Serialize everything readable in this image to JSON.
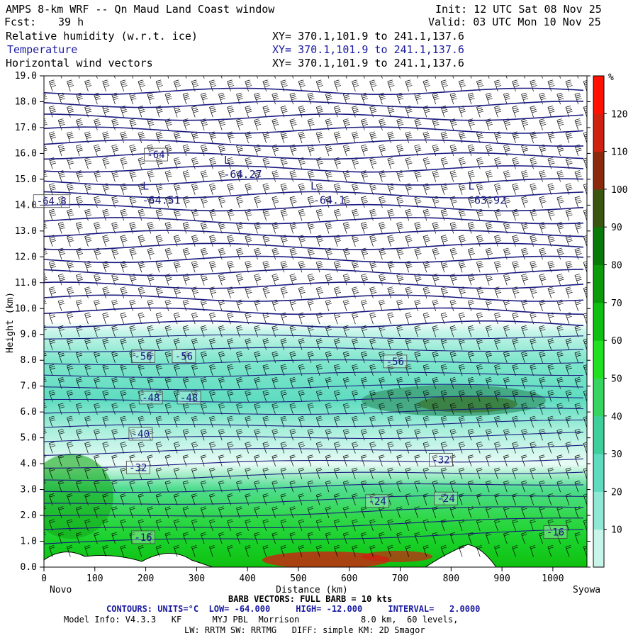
{
  "header": {
    "title": "AMPS 8-km WRF -- Qn Maud Land Coast window",
    "init": "Init: 12 UTC Sat 08 Nov 25",
    "fcst_label": "Fcst:",
    "fcst_value": "39 h",
    "valid": "Valid: 03 UTC Mon 10 Nov 25",
    "fields": [
      {
        "name": "Relative humidity (w.r.t. ice)",
        "xy": "XY= 370.1,101.9 to 241.1,137.6"
      },
      {
        "name": "Temperature",
        "xy": "XY= 370.1,101.9 to 241.1,137.6"
      },
      {
        "name": "Horizontal wind vectors",
        "xy": "XY= 370.1,101.9 to 241.1,137.6"
      }
    ]
  },
  "footer": {
    "barb_line": "BARB VECTORS: FULL BARB = 10 kts",
    "contours_line": "CONTOURS: UNITS=°C  LOW= -64.000     HIGH= -12.000     INTERVAL=   2.0000",
    "model_line1": "Model Info: V4.3.3   KF      MYJ PBL  Morrison            8.0 km,  60 levels,",
    "model_line2": "LW: RRTM SW: RRTMG   DIFF: simple KM: 2D Smagor"
  },
  "colors": {
    "temperature_contour": "#1a1a80",
    "accent_blue": "#1a1aa0",
    "rh_scale": [
      "#ffffff",
      "#ffffff",
      "#ffffff",
      "#c8f5ea",
      "#8ee8d4",
      "#5fdcc0",
      "#3fcf9c",
      "#38d460",
      "#20e020",
      "#10c010",
      "#0a9a0a",
      "#087a08",
      "#3a5510",
      "#8a2a0a",
      "#d02010",
      "#ff1000"
    ]
  },
  "chart_data": {
    "type": "cross-section",
    "xlabel": "Distance (km)",
    "ylabel": "Height (km)",
    "xlim": [
      0,
      1067
    ],
    "ylim": [
      0,
      19
    ],
    "x_ticks": [
      0,
      100,
      200,
      300,
      400,
      500,
      600,
      700,
      800,
      900,
      1000
    ],
    "y_ticks": [
      "0.0",
      "1.0",
      "2.0",
      "3.0",
      "4.0",
      "5.0",
      "6.0",
      "7.0",
      "8.0",
      "9.0",
      "10.0",
      "11.0",
      "12.0",
      "13.0",
      "14.0",
      "15.0",
      "16.0",
      "17.0",
      "18.0",
      "19.0"
    ],
    "endpoints": {
      "left": "Novo",
      "right": "Syowa"
    },
    "colorbar": {
      "unit": "%",
      "tick_labels": [
        "10",
        "20",
        "30",
        "40",
        "50",
        "60",
        "70",
        "80",
        "90",
        "100",
        "110",
        "120"
      ],
      "range": [
        0,
        130
      ],
      "step": 10
    },
    "low_markers": [
      {
        "x": 200,
        "y": 14.6,
        "symbol": "L",
        "value": "-64.51"
      },
      {
        "x": 360,
        "y": 15.6,
        "symbol": "L",
        "value": "-64.27"
      },
      {
        "x": 530,
        "y": 14.6,
        "symbol": "L",
        "value": "-64.1"
      },
      {
        "x": 840,
        "y": 14.6,
        "symbol": "L",
        "value": "-63.92"
      }
    ],
    "contour_labels": [
      {
        "x": 220,
        "y": 15.9,
        "text": "-64"
      },
      {
        "x": 15,
        "y": 14.1,
        "text": "-64.8"
      },
      {
        "x": 195,
        "y": 8.1,
        "text": "-56"
      },
      {
        "x": 275,
        "y": 8.1,
        "text": "-56"
      },
      {
        "x": 690,
        "y": 7.9,
        "text": "-56"
      },
      {
        "x": 210,
        "y": 6.5,
        "text": "-48"
      },
      {
        "x": 285,
        "y": 6.5,
        "text": "-48"
      },
      {
        "x": 190,
        "y": 5.1,
        "text": "-40"
      },
      {
        "x": 185,
        "y": 3.8,
        "text": "-32"
      },
      {
        "x": 780,
        "y": 4.1,
        "text": "-32"
      },
      {
        "x": 655,
        "y": 2.5,
        "text": "-24"
      },
      {
        "x": 790,
        "y": 2.6,
        "text": "-24"
      },
      {
        "x": 195,
        "y": 1.1,
        "text": "-16"
      },
      {
        "x": 1005,
        "y": 1.3,
        "text": "-16"
      }
    ],
    "temperature_contours": {
      "low": -64,
      "high": -12,
      "interval": 2
    },
    "barb_note": "FULL BARB = 10 kts"
  }
}
